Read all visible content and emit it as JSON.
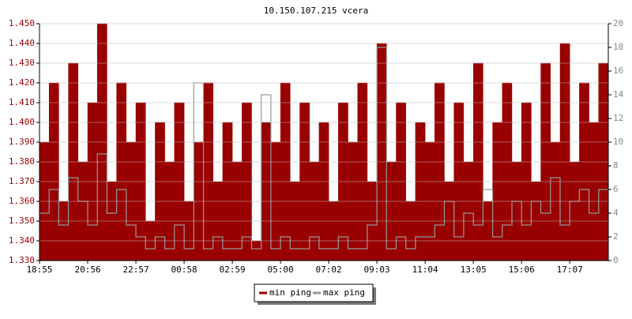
{
  "chart_data": {
    "type": "area-line",
    "title": "10.150.107.215 vcera",
    "categories": [
      "18:55",
      null,
      null,
      null,
      null,
      "20:56",
      null,
      null,
      null,
      null,
      "22:57",
      null,
      null,
      null,
      null,
      "00:58",
      null,
      null,
      null,
      null,
      "02:59",
      null,
      null,
      null,
      null,
      "05:00",
      null,
      null,
      null,
      null,
      "07:02",
      null,
      null,
      null,
      null,
      "09:03",
      null,
      null,
      null,
      null,
      "11:04",
      null,
      null,
      null,
      null,
      "13:05",
      null,
      null,
      null,
      null,
      "15:06",
      null,
      null,
      null,
      null,
      "17:07",
      null,
      null,
      null
    ],
    "series": [
      {
        "name": "min ping",
        "color": "#990000",
        "values": [
          1.39,
          1.42,
          1.36,
          1.43,
          1.38,
          1.41,
          1.45,
          1.37,
          1.42,
          1.39,
          1.41,
          1.35,
          1.4,
          1.38,
          1.41,
          1.36,
          1.39,
          1.42,
          1.37,
          1.4,
          1.38,
          1.41,
          1.34,
          1.4,
          1.39,
          1.42,
          1.37,
          1.41,
          1.38,
          1.4,
          1.36,
          1.41,
          1.39,
          1.42,
          1.37,
          1.44,
          1.38,
          1.41,
          1.36,
          1.4,
          1.39,
          1.42,
          1.37,
          1.41,
          1.38,
          1.43,
          1.36,
          1.4,
          1.42,
          1.38,
          1.41,
          1.37,
          1.43,
          1.39,
          1.44,
          1.38,
          1.42,
          1.4,
          1.43
        ]
      },
      {
        "name": "max ping",
        "color": "#999999",
        "axis": "y2",
        "values": [
          4,
          6,
          3,
          7,
          5,
          3,
          9,
          4,
          6,
          3,
          2,
          1,
          2,
          1,
          3,
          1,
          15,
          1,
          2,
          1,
          1,
          2,
          1,
          14,
          1,
          2,
          1,
          1,
          2,
          1,
          1,
          2,
          1,
          1,
          3,
          18,
          1,
          2,
          1,
          2,
          2,
          3,
          5,
          2,
          4,
          3,
          6,
          2,
          3,
          5,
          3,
          5,
          4,
          7,
          3,
          5,
          6,
          4,
          6
        ]
      }
    ],
    "ylim": [
      1.33,
      1.45
    ],
    "yticks": [
      {
        "value": 1.33,
        "label": "1.330"
      },
      {
        "value": 1.34,
        "label": "1.340"
      },
      {
        "value": 1.35,
        "label": "1.350"
      },
      {
        "value": 1.36,
        "label": "1.360"
      },
      {
        "value": 1.37,
        "label": "1.370"
      },
      {
        "value": 1.38,
        "label": "1.380"
      },
      {
        "value": 1.39,
        "label": "1.390"
      },
      {
        "value": 1.4,
        "label": "1.400"
      },
      {
        "value": 1.41,
        "label": "1.410"
      },
      {
        "value": 1.42,
        "label": "1.420"
      },
      {
        "value": 1.43,
        "label": "1.430"
      },
      {
        "value": 1.44,
        "label": "1.440"
      },
      {
        "value": 1.45,
        "label": "1.450"
      }
    ],
    "y2lim": [
      0,
      20
    ],
    "y2ticks": [
      0,
      2,
      4,
      6,
      8,
      10,
      12,
      14,
      16,
      18,
      20
    ],
    "grid": true
  }
}
